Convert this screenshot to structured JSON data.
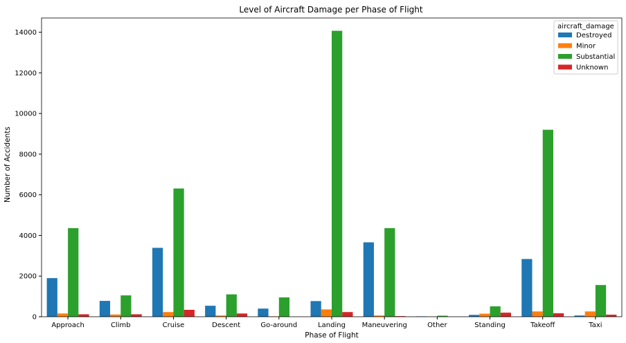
{
  "chart_data": {
    "type": "bar",
    "title": "Level of Aircraft Damage per Phase of Flight",
    "xlabel": "Phase of Flight",
    "ylabel": "Number of Accidents",
    "ylim": [
      0,
      14700
    ],
    "yticks": [
      0,
      2000,
      4000,
      6000,
      8000,
      10000,
      12000,
      14000
    ],
    "grid": false,
    "legend_title": "aircraft_damage",
    "legend_position": "top-right",
    "categories": [
      "Approach",
      "Climb",
      "Cruise",
      "Descent",
      "Go-around",
      "Landing",
      "Maneuvering",
      "Other",
      "Standing",
      "Takeoff",
      "Taxi"
    ],
    "series": [
      {
        "name": "Destroyed",
        "color": "#1f77b4",
        "values": [
          1900,
          780,
          3390,
          540,
          400,
          770,
          3660,
          20,
          90,
          2840,
          60
        ]
      },
      {
        "name": "Minor",
        "color": "#ff7f0e",
        "values": [
          160,
          110,
          230,
          60,
          20,
          360,
          60,
          10,
          150,
          260,
          260
        ]
      },
      {
        "name": "Substantial",
        "color": "#2ca02c",
        "values": [
          4360,
          1050,
          6310,
          1100,
          950,
          14070,
          4360,
          50,
          510,
          9200,
          1560
        ]
      },
      {
        "name": "Unknown",
        "color": "#d62728",
        "values": [
          120,
          120,
          340,
          160,
          0,
          230,
          30,
          0,
          200,
          170,
          100
        ]
      }
    ]
  }
}
